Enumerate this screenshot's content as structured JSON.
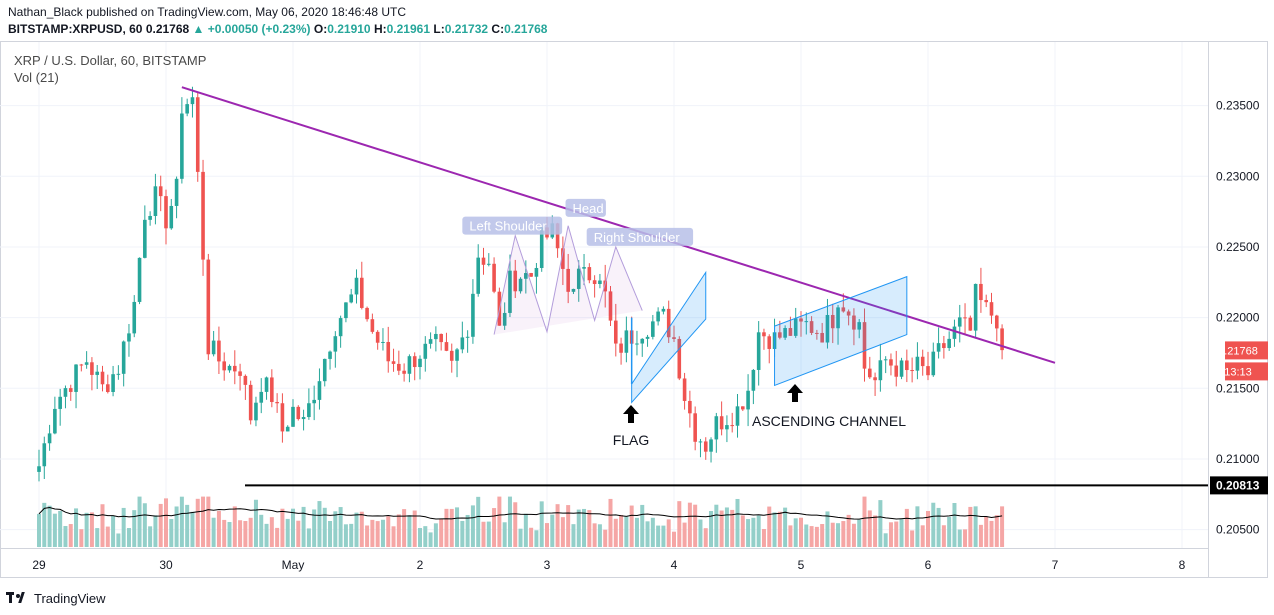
{
  "header": {
    "author": "Nathan_Black",
    "published": "published on TradingView.com, May 06, 2020 18:46:48 UTC",
    "symbol": "BITSTAMP:XRPUSD, 60",
    "last": "0.21768",
    "change": "+0.00050 (+0.23%)",
    "open_label": "O:",
    "open": "0.21910",
    "high_label": "H:",
    "high": "0.21961",
    "low_label": "L:",
    "low": "0.21732",
    "close_label": "C:",
    "close": "0.21768"
  },
  "legend": {
    "title": "XRP / U.S. Dollar, 60, BITSTAMP",
    "volume": "Vol (21)"
  },
  "footer": {
    "brand": "TradingView"
  },
  "colors": {
    "up": "#26a69a",
    "down": "#ef5350",
    "vol_up": "#93cfc9",
    "vol_down": "#f5a6a5",
    "trendline": "#9c27b0",
    "pattern": "#2196f3",
    "last_price_bg": "#ef5350",
    "ma": "#000000"
  },
  "chart_data": {
    "type": "candlestick",
    "symbol": "XRP / U.S. Dollar",
    "interval": "60",
    "exchange": "BITSTAMP",
    "x_ticks": [
      {
        "label": "29",
        "t": 0
      },
      {
        "label": "30",
        "t": 24
      },
      {
        "label": "May",
        "t": 48
      },
      {
        "label": "2",
        "t": 72
      },
      {
        "label": "3",
        "t": 96
      },
      {
        "label": "4",
        "t": 120
      },
      {
        "label": "5",
        "t": 144
      },
      {
        "label": "6",
        "t": 168
      },
      {
        "label": "7",
        "t": 192
      },
      {
        "label": "8",
        "t": 216
      }
    ],
    "y_ticks": [
      "0.23500",
      "0.23000",
      "0.22500",
      "0.22000",
      "0.21500",
      "0.21000",
      "0.20500"
    ],
    "ylim": [
      0.2037,
      0.2395
    ],
    "price_path_keypoints": [
      [
        0,
        0.2095
      ],
      [
        3,
        0.214
      ],
      [
        6,
        0.2155
      ],
      [
        9,
        0.217
      ],
      [
        12,
        0.215
      ],
      [
        15,
        0.2165
      ],
      [
        18,
        0.221
      ],
      [
        20,
        0.2275
      ],
      [
        22,
        0.2285
      ],
      [
        24,
        0.227
      ],
      [
        26,
        0.229
      ],
      [
        27,
        0.235
      ],
      [
        29,
        0.2355
      ],
      [
        31,
        0.2245
      ],
      [
        32,
        0.218
      ],
      [
        34,
        0.217
      ],
      [
        36,
        0.2165
      ],
      [
        38,
        0.2165
      ],
      [
        40,
        0.213
      ],
      [
        42,
        0.2155
      ],
      [
        44,
        0.2145
      ],
      [
        46,
        0.212
      ],
      [
        48,
        0.2135
      ],
      [
        50,
        0.2125
      ],
      [
        53,
        0.216
      ],
      [
        56,
        0.2195
      ],
      [
        60,
        0.222
      ],
      [
        63,
        0.219
      ],
      [
        66,
        0.217
      ],
      [
        69,
        0.2165
      ],
      [
        72,
        0.2175
      ],
      [
        75,
        0.218
      ],
      [
        78,
        0.2165
      ],
      [
        81,
        0.2195
      ],
      [
        83,
        0.2245
      ],
      [
        85,
        0.224
      ],
      [
        87,
        0.219
      ],
      [
        89,
        0.2225
      ],
      [
        91,
        0.223
      ],
      [
        93,
        0.223
      ],
      [
        95,
        0.2255
      ],
      [
        97,
        0.226
      ],
      [
        99,
        0.2235
      ],
      [
        101,
        0.2215
      ],
      [
        103,
        0.224
      ],
      [
        105,
        0.223
      ],
      [
        107,
        0.2215
      ],
      [
        109,
        0.2175
      ],
      [
        111,
        0.2185
      ],
      [
        113,
        0.219
      ],
      [
        115,
        0.2195
      ],
      [
        118,
        0.22
      ],
      [
        120,
        0.2185
      ],
      [
        122,
        0.2145
      ],
      [
        124,
        0.212
      ],
      [
        126,
        0.211
      ],
      [
        128,
        0.2125
      ],
      [
        130,
        0.213
      ],
      [
        132,
        0.2135
      ],
      [
        134,
        0.215
      ],
      [
        136,
        0.219
      ],
      [
        139,
        0.2185
      ],
      [
        142,
        0.219
      ],
      [
        145,
        0.2195
      ],
      [
        148,
        0.219
      ],
      [
        150,
        0.22
      ],
      [
        151,
        0.2215
      ],
      [
        153,
        0.2205
      ],
      [
        155,
        0.2195
      ],
      [
        156,
        0.2165
      ],
      [
        158,
        0.2155
      ],
      [
        160,
        0.217
      ],
      [
        162,
        0.2165
      ],
      [
        164,
        0.216
      ],
      [
        166,
        0.2165
      ],
      [
        168,
        0.216
      ],
      [
        170,
        0.2175
      ],
      [
        172,
        0.2185
      ],
      [
        174,
        0.2195
      ],
      [
        176,
        0.219
      ],
      [
        177,
        0.2215
      ],
      [
        178,
        0.221
      ],
      [
        179,
        0.2205
      ],
      [
        181,
        0.22
      ],
      [
        182,
        0.2177
      ]
    ],
    "last_price": "0.21768",
    "last_price_countdown": "13:13",
    "horizontal_line": "0.20813",
    "trendline": {
      "from": [
        27,
        0.2363
      ],
      "to": [
        192,
        0.2168
      ]
    },
    "annotations": [
      {
        "label": "Left Shoulder"
      },
      {
        "label": "Head"
      },
      {
        "label": "Right Shoulder"
      },
      {
        "label": "FLAG"
      },
      {
        "label": "ASCENDING CHANNEL"
      }
    ],
    "volume_study": "Vol (21)"
  }
}
